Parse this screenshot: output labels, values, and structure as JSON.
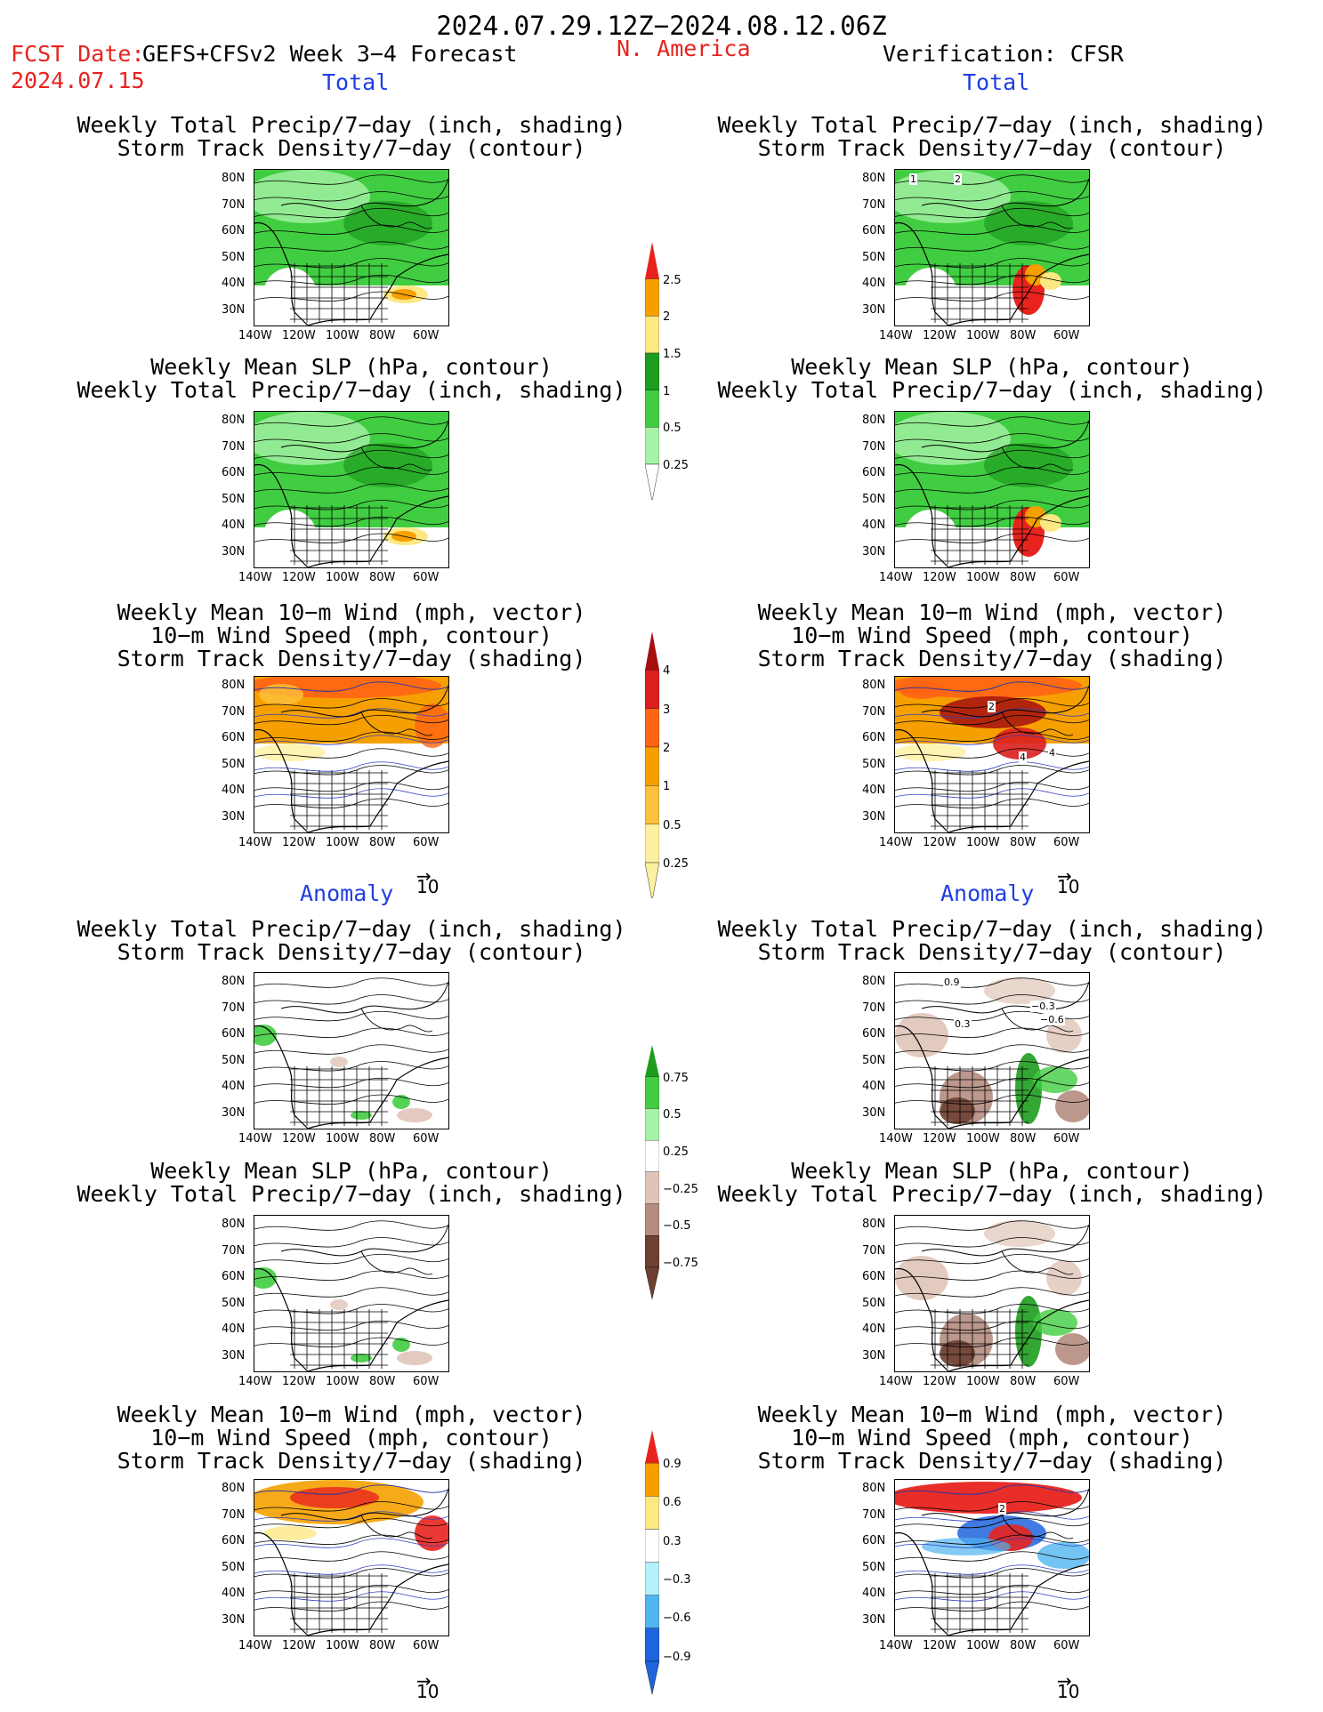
{
  "header": {
    "date_range": "2024.07.29.12Z−2024.08.12.06Z",
    "fcst_prefix": "FCST Date:",
    "fcst_product": "GEFS+CFSv2 Week 3−4 Forecast",
    "fcst_date": "2024.07.15",
    "region": "N. America",
    "verification": "Verification: CFSR"
  },
  "sections": {
    "total": "Total",
    "anomaly": "Anomaly"
  },
  "panel_titles": {
    "precip_storm": [
      "Weekly Total Precip/7−day (inch, shading)",
      "Storm Track Density/7−day (contour)"
    ],
    "slp_precip": [
      "Weekly Mean SLP (hPa, contour)",
      "Weekly Total Precip/7−day (inch, shading)"
    ],
    "wind_storm": [
      "Weekly Mean 10−m Wind (mph, vector)",
      "10−m Wind Speed (mph, contour)",
      "Storm Track Density/7−day (shading)"
    ]
  },
  "lat_labels": [
    "80N",
    "70N",
    "60N",
    "50N",
    "40N",
    "30N"
  ],
  "lon_labels": [
    "140W",
    "120W",
    "100W",
    "80W",
    "60W"
  ],
  "vector_ref": "10",
  "colorbars": {
    "precip_total": {
      "labels": [
        "2.5",
        "2",
        "1.5",
        "1",
        "0.5",
        "0.25"
      ],
      "colors": [
        "#e8231e",
        "#f5a000",
        "#fde883",
        "#1e9c1e",
        "#41cd41",
        "#a6f2a6"
      ]
    },
    "storm_total": {
      "labels": [
        "4",
        "3",
        "2",
        "1",
        "0.5",
        "0.25"
      ],
      "colors": [
        "#a50f0f",
        "#dc1e1e",
        "#ff6414",
        "#f5a000",
        "#fdc03c",
        "#fdf0a0"
      ]
    },
    "precip_anom": {
      "labels": [
        "0.75",
        "0.5",
        "0.25",
        "−0.25",
        "−0.5",
        "−0.75"
      ],
      "colors": [
        "#1e9c1e",
        "#41cd41",
        "#a6f2a6",
        "#ffffff",
        "#e0c4b8",
        "#b48c80",
        "#6e4032"
      ]
    },
    "storm_anom": {
      "labels": [
        "0.9",
        "0.6",
        "0.3",
        "−0.3",
        "−0.6",
        "−0.9"
      ],
      "colors": [
        "#e8231e",
        "#f5a000",
        "#fde883",
        "#ffffff",
        "#b4f0fa",
        "#50b4f0",
        "#1e64dc"
      ]
    }
  },
  "contour_labels": {
    "obs_storm_total": [
      "1",
      "2"
    ],
    "obs_wind_total": [
      "2",
      "4",
      "4"
    ],
    "obs_precip_anom": [
      "0.9",
      "−0.3",
      "0.3",
      "−0.6"
    ],
    "obs_wind_anom": [
      "2"
    ]
  }
}
